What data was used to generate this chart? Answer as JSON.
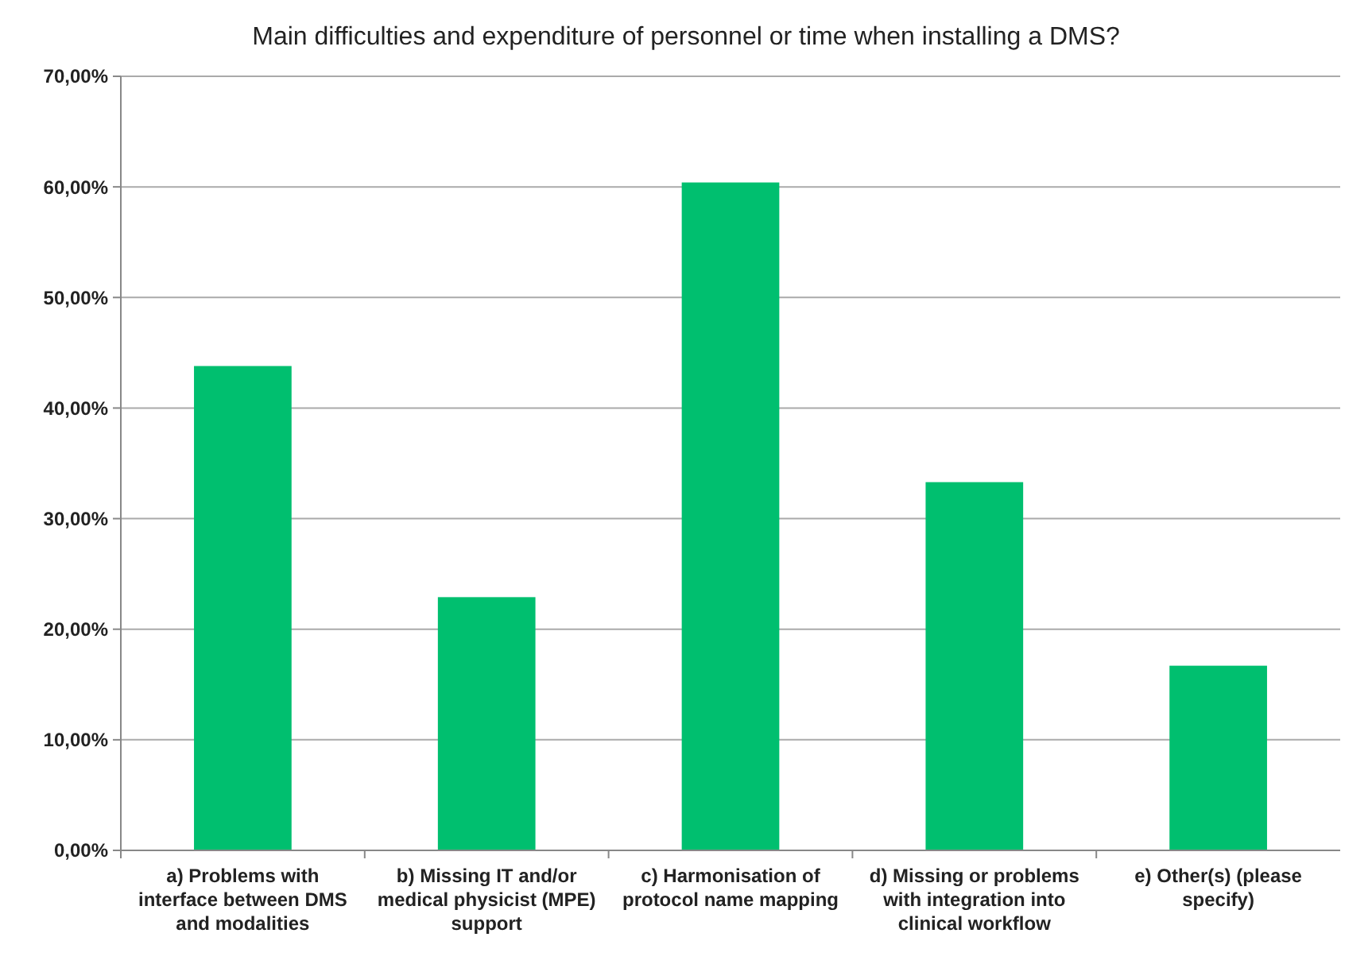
{
  "chart_data": {
    "type": "bar",
    "title": "Main difficulties and expenditure of personnel or time when installing a DMS?",
    "categories": [
      "a) Problems with interface between DMS and modalities",
      "b) Missing IT and/or medical physicist (MPE) support",
      "c) Harmonisation of protocol name mapping",
      "d) Missing or problems with integration into clinical workflow",
      "e) Other(s) (please specify)"
    ],
    "values": [
      43.8,
      22.9,
      60.4,
      33.3,
      16.7
    ],
    "color": "#00bf6f",
    "ylim": [
      0,
      70
    ],
    "yticks": [
      {
        "value": 0,
        "label": "0,00%"
      },
      {
        "value": 10,
        "label": "10,00%"
      },
      {
        "value": 20,
        "label": "20,00%"
      },
      {
        "value": 30,
        "label": "30,00%"
      },
      {
        "value": 40,
        "label": "40,00%"
      },
      {
        "value": 50,
        "label": "50,00%"
      },
      {
        "value": 60,
        "label": "60,00%"
      },
      {
        "value": 70,
        "label": "70,00%"
      }
    ],
    "grid": "y"
  }
}
